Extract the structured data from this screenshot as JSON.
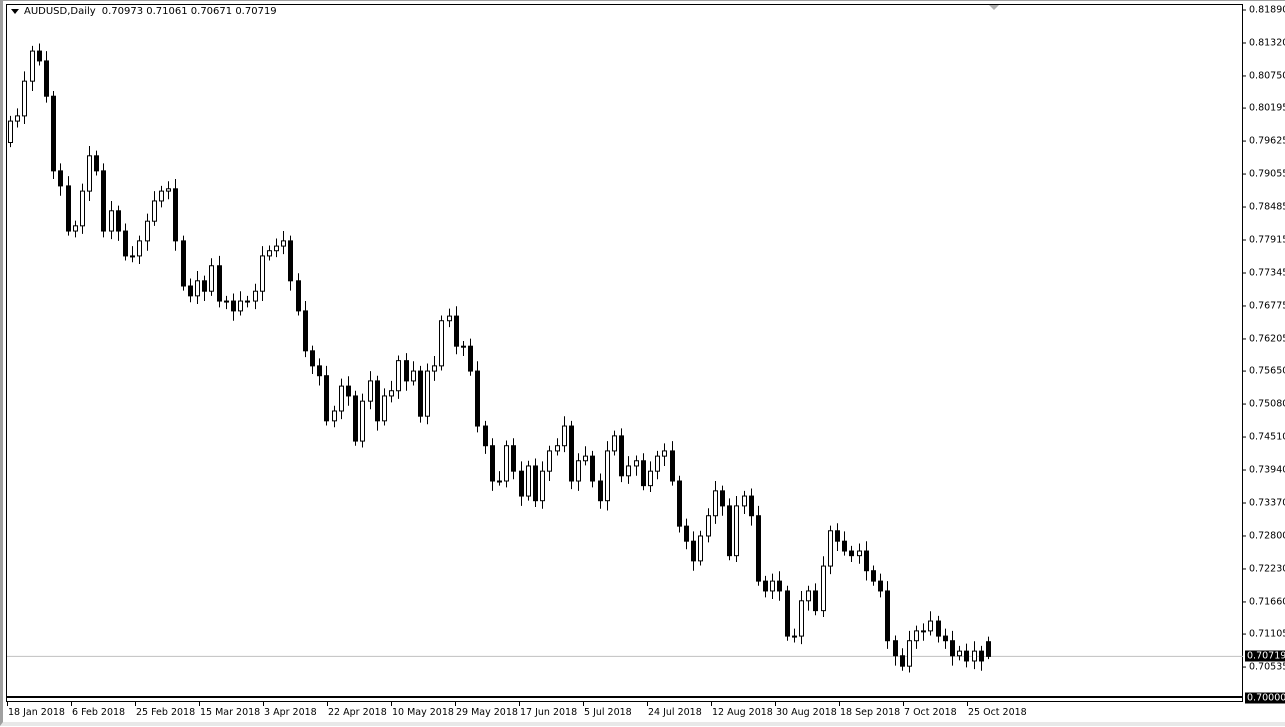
{
  "header": {
    "symbol": "AUDUSD,Daily",
    "ohlc": "0.70973 0.71061 0.70671 0.70719"
  },
  "chart_data": {
    "type": "candlestick",
    "symbol": "AUDUSD",
    "timeframe": "Daily",
    "ylim": [
      0.7,
      0.8189
    ],
    "y_ticks": [
      "0.81890",
      "0.81320",
      "0.80750",
      "0.80195",
      "0.79625",
      "0.79055",
      "0.78485",
      "0.77915",
      "0.77345",
      "0.76775",
      "0.76205",
      "0.75650",
      "0.75080",
      "0.74510",
      "0.73940",
      "0.73370",
      "0.72800",
      "0.72230",
      "0.71660",
      "0.71105",
      "0.70535"
    ],
    "current_price": "0.70719",
    "horizontal_line": "0.70000",
    "x_ticks": [
      "18 Jan 2018",
      "6 Feb 2018",
      "25 Feb 2018",
      "15 Mar 2018",
      "3 Apr 2018",
      "22 Apr 2018",
      "10 May 2018",
      "29 May 2018",
      "17 Jun 2018",
      "5 Jul 2018",
      "24 Jul 2018",
      "12 Aug 2018",
      "30 Aug 2018",
      "18 Sep 2018",
      "7 Oct 2018",
      "25 Oct 2018"
    ],
    "first_open": 0.796,
    "closes": [
      0.7997,
      0.8006,
      0.8066,
      0.8118,
      0.8101,
      0.804,
      0.7911,
      0.7885,
      0.7807,
      0.7816,
      0.7876,
      0.7937,
      0.7911,
      0.7807,
      0.7842,
      0.7807,
      0.7764,
      0.7764,
      0.779,
      0.7824,
      0.7859,
      0.7876,
      0.788,
      0.779,
      0.7712,
      0.7695,
      0.7721,
      0.7703,
      0.7747,
      0.7686,
      0.7686,
      0.7669,
      0.7686,
      0.7686,
      0.7703,
      0.7764,
      0.7773,
      0.7781,
      0.779,
      0.7721,
      0.7669,
      0.76,
      0.7574,
      0.7557,
      0.7479,
      0.7496,
      0.7539,
      0.7522,
      0.7444,
      0.7513,
      0.7548,
      0.7479,
      0.7522,
      0.7531,
      0.7583,
      0.7548,
      0.7565,
      0.7487,
      0.7565,
      0.7574,
      0.7652,
      0.766,
      0.7608,
      0.7608,
      0.7565,
      0.747,
      0.7436,
      0.7375,
      0.7375,
      0.7436,
      0.7392,
      0.7349,
      0.7401,
      0.7341,
      0.7392,
      0.7427,
      0.7436,
      0.747,
      0.7375,
      0.741,
      0.7418,
      0.7375,
      0.7341,
      0.7427,
      0.7453,
      0.7384,
      0.7401,
      0.741,
      0.7367,
      0.7392,
      0.7418,
      0.7427,
      0.7375,
      0.7297,
      0.7271,
      0.7237,
      0.728,
      0.7315,
      0.7358,
      0.7332,
      0.7246,
      0.7332,
      0.7349,
      0.7315,
      0.7202,
      0.7185,
      0.7202,
      0.7185,
      0.7107,
      0.7107,
      0.7168,
      0.7185,
      0.7151,
      0.7228,
      0.7289,
      0.7271,
      0.7254,
      0.7246,
      0.7254,
      0.722,
      0.7202,
      0.7185,
      0.7099,
      0.7073,
      0.7055,
      0.7099,
      0.7116,
      0.7116,
      0.7133,
      0.7107,
      0.7099,
      0.7073,
      0.7081,
      0.7064,
      0.7081,
      0.7064
    ],
    "last_candle": {
      "open": 0.70973,
      "high": 0.71061,
      "low": 0.70671,
      "close": 0.70719
    },
    "colors": {
      "background": "#ffffff",
      "candle": "#000000",
      "bid_line": "#c0c0c0"
    },
    "grid": false
  }
}
